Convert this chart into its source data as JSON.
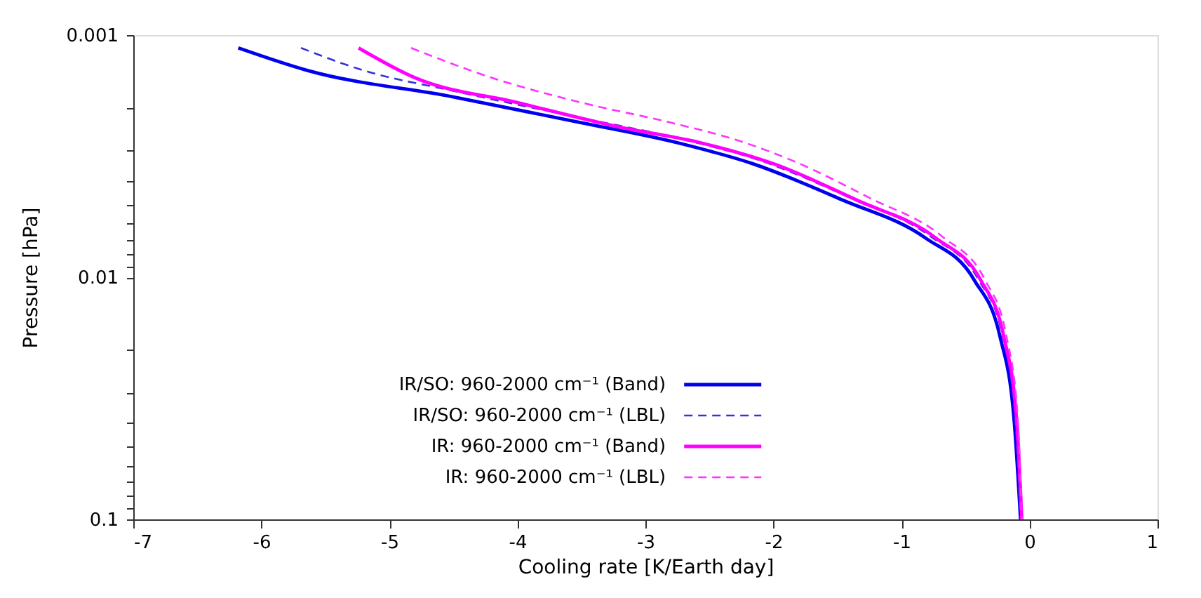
{
  "chart_data": {
    "type": "line",
    "xlabel": "Cooling rate [K/Earth day]",
    "ylabel": "Pressure [hPa]",
    "log": "y",
    "grid": false,
    "legend": "bottom left",
    "marker": "none",
    "xlim": [
      -7,
      1
    ],
    "xticks": [
      -7,
      -6,
      -5,
      -4,
      -3,
      -2,
      -1,
      0,
      1
    ],
    "ylim": [
      0.1,
      0.001
    ],
    "yticks": [
      0.001,
      {
        "value": 0.002,
        "label": null
      },
      {
        "value": 0.003,
        "label": null
      },
      {
        "value": 0.004,
        "label": null
      },
      {
        "value": 0.005,
        "label": null
      },
      {
        "value": 0.006,
        "label": null
      },
      {
        "value": 0.007,
        "label": null
      },
      {
        "value": 0.008,
        "label": null
      },
      {
        "value": 0.009,
        "label": null
      },
      0.01,
      {
        "value": 0.02,
        "label": null
      },
      {
        "value": 0.03,
        "label": null
      },
      {
        "value": 0.04,
        "label": null
      },
      {
        "value": 0.05,
        "label": null
      },
      {
        "value": 0.06,
        "label": null
      },
      {
        "value": 0.07,
        "label": null
      },
      {
        "value": 0.08,
        "label": null
      },
      {
        "value": 0.09,
        "label": null
      },
      0.1
    ],
    "series": [
      {
        "name": "IR/SO: 960-2000 cm⁻¹ (Band)",
        "color": "#0000ee",
        "line_style": "solid",
        "x": [
          -6.18,
          -5.64,
          -4.5,
          -3.5,
          -2.73,
          -2.16,
          -1.46,
          -0.81,
          -0.43,
          -0.23,
          -0.12,
          -0.07
        ],
        "values": [
          0.00113,
          0.0014,
          0.0018,
          0.0023,
          0.0028,
          0.0034,
          0.0048,
          0.0069,
          0.0103,
          0.0176,
          0.039,
          0.1
        ]
      },
      {
        "name": "IR/SO: 960-2000 cm⁻¹ (LBL)",
        "color": "#3333dd",
        "line_style": "dashed",
        "x": [
          -5.69,
          -5.2,
          -4.5,
          -3.5,
          -2.7,
          -2.1,
          -1.4,
          -0.77,
          -0.4,
          -0.21,
          -0.11,
          -0.07
        ],
        "values": [
          0.00113,
          0.0014,
          0.0017,
          0.0022,
          0.0027,
          0.0033,
          0.0047,
          0.0068,
          0.0102,
          0.0175,
          0.039,
          0.1
        ]
      },
      {
        "name": "IR: 960-2000 cm⁻¹ (Band)",
        "color": "#ff00ff",
        "line_style": "solid",
        "x": [
          -5.24,
          -4.8,
          -4.0,
          -3.2,
          -2.55,
          -2.0,
          -1.35,
          -0.73,
          -0.38,
          -0.2,
          -0.1,
          -0.06
        ],
        "values": [
          0.00113,
          0.0015,
          0.0019,
          0.0024,
          0.0028,
          0.0034,
          0.0048,
          0.0069,
          0.0103,
          0.0176,
          0.039,
          0.1
        ]
      },
      {
        "name": "IR: 960-2000 cm⁻¹ (LBL)",
        "color": "#ff33ff",
        "line_style": "dashed",
        "x": [
          -4.83,
          -4.2,
          -3.5,
          -2.8,
          -2.3,
          -1.85,
          -1.25,
          -0.68,
          -0.35,
          -0.18,
          -0.09,
          -0.06
        ],
        "values": [
          0.00113,
          0.0015,
          0.0019,
          0.0023,
          0.0027,
          0.0033,
          0.0047,
          0.0068,
          0.0102,
          0.0175,
          0.039,
          0.1
        ]
      }
    ]
  }
}
